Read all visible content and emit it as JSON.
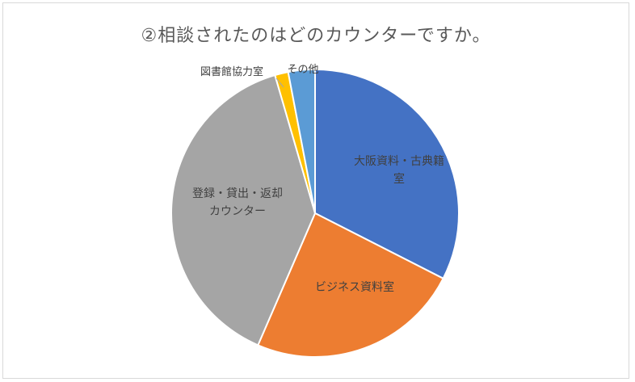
{
  "chart_data": {
    "type": "pie",
    "title": "②相談されたのはどのカウンターですか。",
    "categories": [
      "大阪資料・古典籍室",
      "ビジネス資料室",
      "登録・貸出・返却カウンター",
      "図書館協力室",
      "その他"
    ],
    "label_lines": [
      [
        "大阪資料・古典籍",
        "室"
      ],
      [
        "ビジネス資料室"
      ],
      [
        "登録・貸出・返却",
        "カウンター"
      ],
      [
        "図書館協力室"
      ],
      [
        "その他"
      ]
    ],
    "values": [
      32.5,
      24.0,
      39.0,
      1.5,
      3.0
    ],
    "unit": "%",
    "colors": [
      "#4472c4",
      "#ed7d31",
      "#a5a5a5",
      "#ffc000",
      "#5b9bd5"
    ],
    "start_angle_deg": 0,
    "direction": "clockwise",
    "legend": "none",
    "data_labels": "category names"
  }
}
